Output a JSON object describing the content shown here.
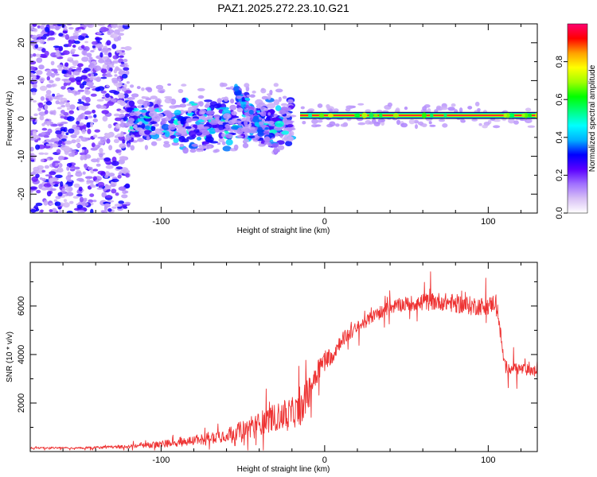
{
  "title": "PAZ1.2025.272.23.10.G21",
  "chart_data": [
    {
      "type": "heatmap",
      "title": "PAZ1.2025.272.23.10.G21",
      "xlabel": "Height of straight line (km)",
      "ylabel": "Frequency (Hz)",
      "xlim": [
        -180,
        130
      ],
      "ylim": [
        -25,
        25
      ],
      "xticks": [
        -100,
        0,
        100
      ],
      "xtick_labels": [
        "-100",
        "0",
        "100"
      ],
      "yticks": [
        -20,
        -10,
        0,
        10,
        20
      ],
      "ytick_labels": [
        "-20",
        "-10",
        "0",
        "10",
        "20"
      ],
      "colorbar": {
        "label": "Normalized spectral amplitude",
        "range": [
          0.0,
          1.0
        ],
        "ticks": [
          0.0,
          0.2,
          0.4,
          0.6,
          0.8
        ],
        "tick_labels": [
          "0.0",
          "0.2",
          "0.4",
          "0.6",
          "0.8"
        ],
        "colors": [
          "#ffffff",
          "#d8c0f5",
          "#a070ff",
          "#5a00ff",
          "#0000ff",
          "#00b0ff",
          "#00ffff",
          "#00ff80",
          "#00ff00",
          "#a0ff00",
          "#ffff00",
          "#ffa000",
          "#ff0000",
          "#ff0070"
        ]
      },
      "features": [
        {
          "description": "diffuse scatter, low amplitude",
          "x_range": [
            -180,
            -120
          ],
          "freq_range": [
            -25,
            25
          ],
          "amplitude": 0.1
        },
        {
          "description": "blob band near 0 Hz",
          "x_range": [
            -120,
            -20
          ],
          "freq_range": [
            -5,
            3
          ],
          "amplitude": 0.3
        },
        {
          "description": "sloping branch",
          "x_start": -55,
          "x_end": -30,
          "freq_start": 8,
          "freq_end": -8,
          "amplitude": 0.3
        },
        {
          "description": "carrier line",
          "x_range": [
            -15,
            130
          ],
          "freq": 0.8,
          "amplitude": 0.95
        }
      ]
    },
    {
      "type": "line",
      "xlabel": "Height of straight line (km)",
      "ylabel": "SNR (10 * v/v)",
      "xlim": [
        -180,
        130
      ],
      "ylim": [
        0,
        7800
      ],
      "xticks": [
        -100,
        0,
        100
      ],
      "xtick_labels": [
        "-100",
        "0",
        "100"
      ],
      "yticks": [
        2000,
        4000,
        6000
      ],
      "ytick_labels": [
        "2000",
        "4000",
        "6000"
      ],
      "series": [
        {
          "name": "SNR",
          "color": "#ee3333",
          "x": [
            -180,
            -150,
            -120,
            -100,
            -80,
            -60,
            -45,
            -35,
            -25,
            -15,
            -10,
            -5,
            0,
            5,
            10,
            20,
            30,
            40,
            50,
            60,
            70,
            80,
            90,
            100,
            105,
            110,
            120,
            130
          ],
          "y": [
            150,
            150,
            200,
            300,
            450,
            700,
            1000,
            1300,
            1500,
            1700,
            2400,
            3300,
            3800,
            4000,
            4600,
            5100,
            5600,
            5950,
            6100,
            6150,
            6200,
            6100,
            6000,
            6000,
            6200,
            3500,
            3400,
            3300
          ],
          "noise_amplitude": [
            60,
            60,
            120,
            250,
            350,
            500,
            700,
            900,
            1000,
            1100,
            1200,
            900,
            700,
            600,
            500,
            450,
            400,
            450,
            500,
            600,
            600,
            650,
            650,
            600,
            600,
            450,
            400,
            400
          ]
        }
      ]
    }
  ]
}
